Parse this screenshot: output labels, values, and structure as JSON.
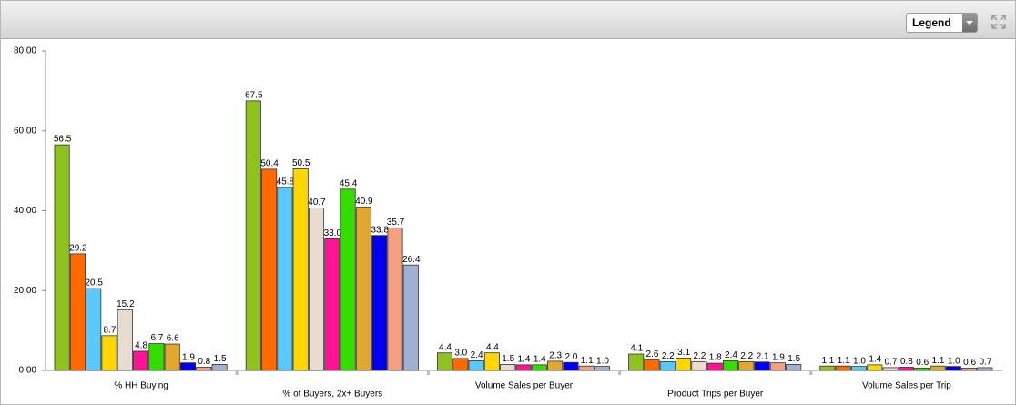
{
  "toolbar": {
    "legend_button": "Legend"
  },
  "chart_data": {
    "type": "bar",
    "categories": [
      "% HH Buying",
      "% of Buyers, 2x+ Buyers",
      "Volume Sales per Buyer",
      "Product Trips per Buyer",
      "Volume Sales per Trip"
    ],
    "series": [
      {
        "color": "#8dc21f",
        "values": [
          56.5,
          67.5,
          4.4,
          4.1,
          1.1
        ],
        "value_labels": [
          "56.5",
          "67.5",
          "4.4",
          "4.1",
          "1.1"
        ]
      },
      {
        "color": "#ff6a00",
        "values": [
          29.2,
          50.4,
          3.0,
          2.6,
          1.1
        ],
        "value_labels": [
          "29.2",
          "50.4",
          "3.0",
          "2.6",
          "1.1"
        ]
      },
      {
        "color": "#5ac8fa",
        "values": [
          20.5,
          45.8,
          2.4,
          2.2,
          1.0
        ],
        "value_labels": [
          "20.5",
          "45.8",
          "2.4",
          "2.2",
          "1.0"
        ]
      },
      {
        "color": "#ffd700",
        "values": [
          8.7,
          50.5,
          4.4,
          3.1,
          1.4
        ],
        "value_labels": [
          "8.7",
          "50.5",
          "4.4",
          "3.1",
          "1.4"
        ]
      },
      {
        "color": "#e8dcd0",
        "values": [
          15.2,
          40.7,
          1.5,
          2.2,
          0.7
        ],
        "value_labels": [
          "15.2",
          "40.7",
          "1.5",
          "2.2",
          "0.7"
        ]
      },
      {
        "color": "#ff1493",
        "values": [
          4.8,
          33.0,
          1.4,
          1.8,
          0.8
        ],
        "value_labels": [
          "4.8",
          "33.0",
          "1.4",
          "1.8",
          "0.8"
        ]
      },
      {
        "color": "#33dd00",
        "values": [
          6.7,
          45.4,
          1.4,
          2.4,
          0.6
        ],
        "value_labels": [
          "6.7",
          "45.4",
          "1.4",
          "2.4",
          "0.6"
        ]
      },
      {
        "color": "#e0a830",
        "values": [
          6.6,
          40.9,
          2.3,
          2.2,
          1.1
        ],
        "value_labels": [
          "6.6",
          "40.9",
          "2.3",
          "2.2",
          "1.1"
        ]
      },
      {
        "color": "#0000ee",
        "values": [
          1.9,
          33.8,
          2.0,
          2.1,
          1.0
        ],
        "value_labels": [
          "1.9",
          "33.8",
          "2.0",
          "2.1",
          "1.0"
        ]
      },
      {
        "color": "#f4a080",
        "values": [
          0.8,
          35.7,
          1.1,
          1.9,
          0.6
        ],
        "value_labels": [
          "0.8",
          "35.7",
          "1.1",
          "1.9",
          "0.6"
        ]
      },
      {
        "color": "#a0b0d0",
        "values": [
          1.5,
          26.4,
          1.0,
          1.5,
          0.7
        ],
        "value_labels": [
          "1.5",
          "26.4",
          "1.0",
          "1.5",
          "0.7"
        ]
      }
    ],
    "ylim": [
      0,
      80
    ],
    "yticks": [
      {
        "value": 0,
        "label": "0.00"
      },
      {
        "value": 20,
        "label": "20.00"
      },
      {
        "value": 40,
        "label": "40.00"
      },
      {
        "value": 60,
        "label": "60.00"
      },
      {
        "value": 80,
        "label": "80.00"
      }
    ]
  }
}
